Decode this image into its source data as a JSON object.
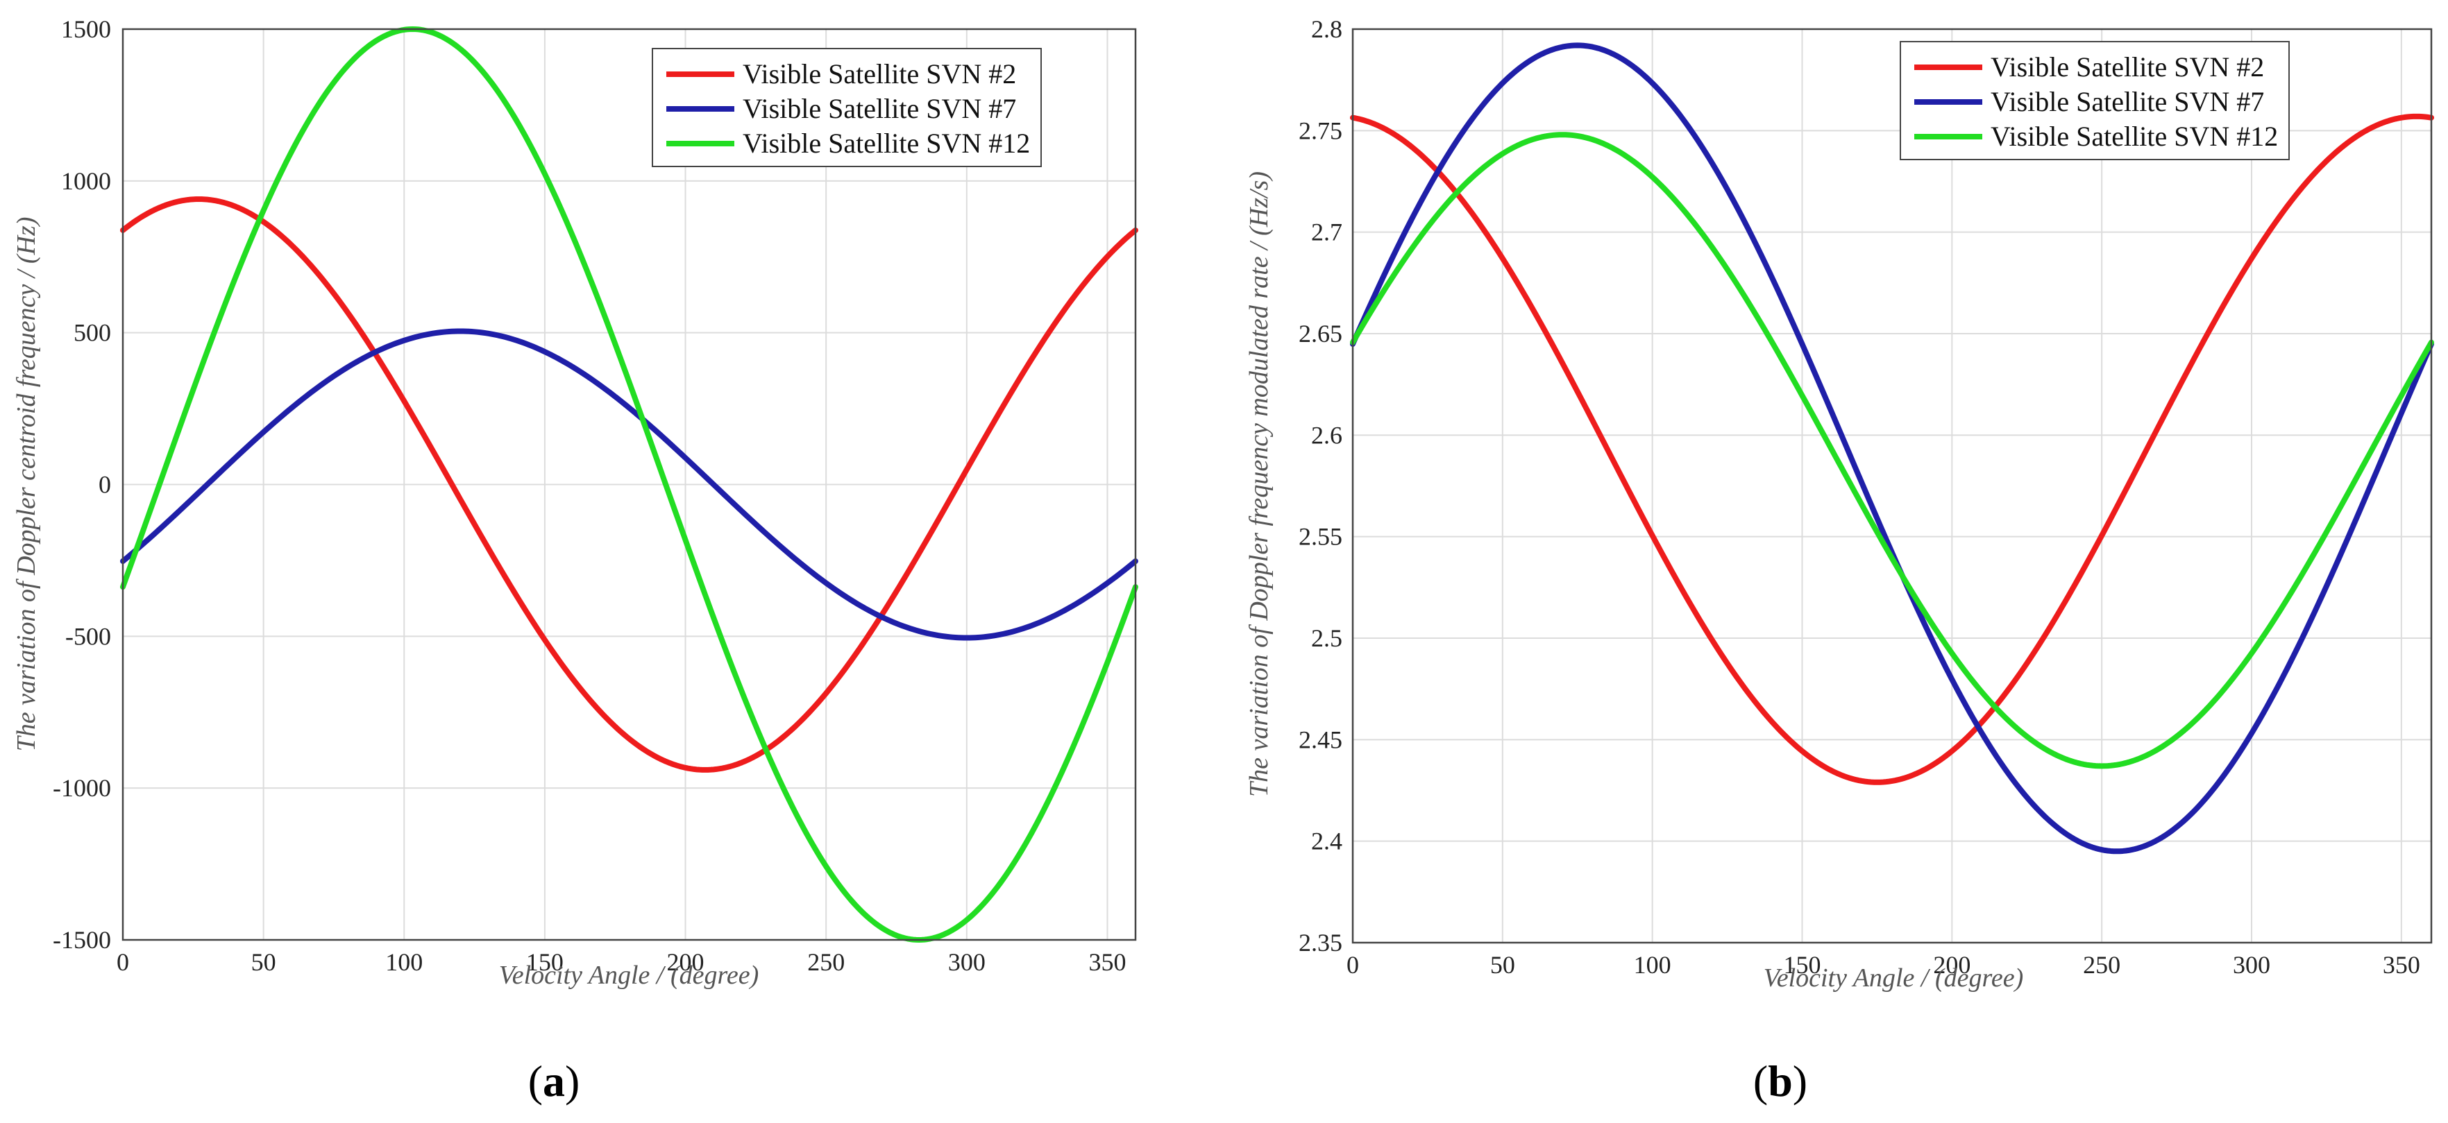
{
  "chart_data": [
    {
      "type": "line",
      "panel_label": {
        "open": "(",
        "letter": "a",
        "close": ")"
      },
      "title": "",
      "xlabel": "Velocity Angle / (degree)",
      "ylabel": "The variation of Doppler centroid frequency / (Hz)",
      "xlim": [
        0,
        360
      ],
      "ylim": [
        -1500,
        1500
      ],
      "xticks": [
        0,
        50,
        100,
        150,
        200,
        250,
        300,
        350
      ],
      "yticks": [
        1500,
        1000,
        500,
        0,
        -500,
        -1000,
        -1500
      ],
      "grid": true,
      "legend_position": "top-right",
      "series": [
        {
          "name": "Visible Satellite SVN #2",
          "color": "#ee1c1c",
          "formula": {
            "offset": 0,
            "amplitude": 940,
            "phase_deg": 27
          },
          "x": [
            0,
            27,
            117,
            207,
            297,
            360
          ],
          "y": [
            838,
            940,
            0,
            -940,
            0,
            838
          ]
        },
        {
          "name": "Visible Satellite SVN #7",
          "color": "#1f1fa8",
          "formula": {
            "offset": 0,
            "amplitude": 505,
            "phase_deg": 120
          },
          "x": [
            0,
            30,
            120,
            210,
            300,
            360
          ],
          "y": [
            -253,
            0,
            505,
            0,
            -505,
            -253
          ]
        },
        {
          "name": "Visible Satellite SVN #12",
          "color": "#22dd22",
          "formula": {
            "offset": 0,
            "amplitude": 1500,
            "phase_deg": 103
          },
          "x": [
            0,
            13,
            103,
            193,
            283,
            360
          ],
          "y": [
            -337,
            0,
            1500,
            0,
            -1500,
            -337
          ]
        }
      ]
    },
    {
      "type": "line",
      "panel_label": {
        "open": "(",
        "letter": "b",
        "close": ")"
      },
      "title": "",
      "xlabel": "Velocity Angle / (degree)",
      "ylabel": "The variation of Doppler frequency modulated rate / (Hz/s)",
      "xlim": [
        0,
        360
      ],
      "ylim": [
        2.35,
        2.8
      ],
      "xticks": [
        0,
        50,
        100,
        150,
        200,
        250,
        300,
        350
      ],
      "yticks": [
        2.8,
        2.75,
        2.7,
        2.65,
        2.6,
        2.55,
        2.5,
        2.45,
        2.4,
        2.35
      ],
      "ytick_labels": [
        "2.8",
        "2.75",
        "2.7",
        "2.65",
        "2.6",
        "2.55",
        "2.5",
        "2.45",
        "2.4",
        "2.35"
      ],
      "grid": true,
      "legend_position": "top-right",
      "series": [
        {
          "name": "Visible Satellite SVN #2",
          "color": "#ee1c1c",
          "formula": {
            "offset": 2.593,
            "amplitude": 0.164,
            "phase_deg": -5
          },
          "x": [
            0,
            85,
            175,
            265,
            355,
            360
          ],
          "y": [
            2.756,
            2.593,
            2.429,
            2.593,
            2.757,
            2.756
          ]
        },
        {
          "name": "Visible Satellite SVN #7",
          "color": "#1f1fa8",
          "formula": {
            "offset": 2.5935,
            "amplitude": 0.1985,
            "phase_deg": 75
          },
          "x": [
            0,
            75,
            165,
            255,
            345,
            360
          ],
          "y": [
            2.645,
            2.792,
            2.594,
            2.395,
            2.594,
            2.645
          ]
        },
        {
          "name": "Visible Satellite SVN #12",
          "color": "#22dd22",
          "formula": {
            "offset": 2.5925,
            "amplitude": 0.1555,
            "phase_deg": 70
          },
          "x": [
            0,
            70,
            160,
            250,
            340,
            360
          ],
          "y": [
            2.646,
            2.748,
            2.593,
            2.437,
            2.593,
            2.646
          ]
        }
      ]
    }
  ]
}
